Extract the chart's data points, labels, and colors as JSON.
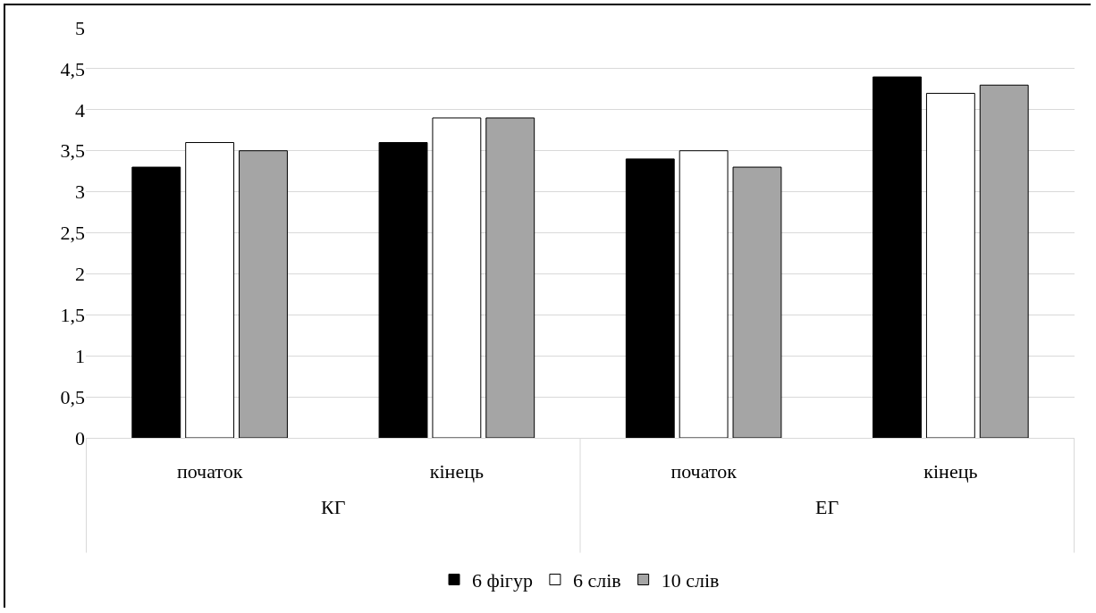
{
  "chart_data": {
    "type": "bar",
    "categories": [
      "початок",
      "кінець",
      "початок",
      "кінець"
    ],
    "annotations": [
      "КГ",
      "ЕГ"
    ],
    "series": [
      {
        "name": "6 фігур",
        "color": "#000000",
        "values": [
          3.3,
          3.6,
          3.4,
          4.4
        ]
      },
      {
        "name": "6 слів",
        "color": "#ffffff",
        "values": [
          3.6,
          3.9,
          3.5,
          4.2
        ]
      },
      {
        "name": "10 слів",
        "color": "#a5a5a5",
        "values": [
          3.5,
          3.9,
          3.3,
          4.3
        ]
      }
    ],
    "ylim": [
      0,
      5
    ],
    "yticks": [
      0,
      {
        "value": 0.5,
        "label": "0,5"
      },
      1,
      {
        "value": 1.5,
        "label": "1,5"
      },
      2,
      {
        "value": 2.5,
        "label": "2,5"
      },
      3,
      {
        "value": 3.5,
        "label": "3,5"
      },
      4,
      {
        "value": 4.5,
        "label": "4,5"
      },
      5
    ],
    "grid": "y",
    "legend": "bottom"
  }
}
